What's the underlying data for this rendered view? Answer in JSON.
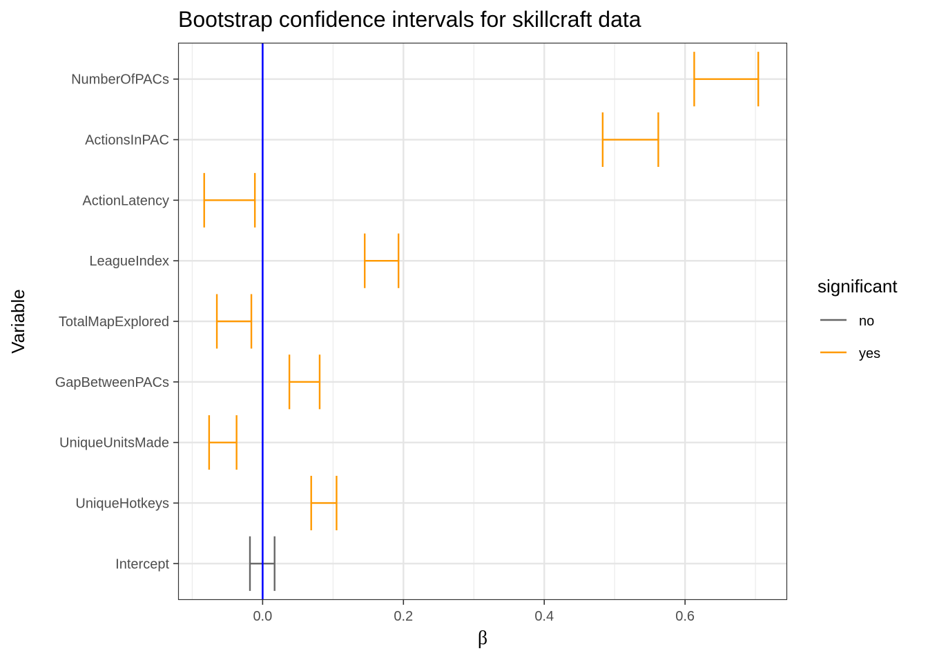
{
  "chart_data": {
    "type": "errorbar",
    "title": "Bootstrap confidence intervals for skillcraft data",
    "xlabel": "β",
    "ylabel": "Variable",
    "xlim": [
      -0.12,
      0.745
    ],
    "x_ticks": [
      "0.0",
      "0.2",
      "0.4",
      "0.6"
    ],
    "x_tick_values": [
      0.0,
      0.2,
      0.4,
      0.6
    ],
    "grid": true,
    "reference_line": {
      "x": 0,
      "color": "#0000ff"
    },
    "legend": {
      "title": "significant",
      "placement": "right",
      "entries": [
        {
          "label": "no",
          "color": "#666666"
        },
        {
          "label": "yes",
          "color": "#ff9900"
        }
      ]
    },
    "categories": [
      "NumberOfPACs",
      "ActionsInPAC",
      "ActionLatency",
      "LeagueIndex",
      "TotalMapExplored",
      "GapBetweenPACs",
      "UniqueUnitsMade",
      "UniqueHotkeys",
      "Intercept"
    ],
    "intervals": [
      {
        "variable": "NumberOfPACs",
        "lower": 0.613,
        "upper": 0.704,
        "significant": "yes"
      },
      {
        "variable": "ActionsInPAC",
        "lower": 0.483,
        "upper": 0.562,
        "significant": "yes"
      },
      {
        "variable": "ActionLatency",
        "lower": -0.083,
        "upper": -0.011,
        "significant": "yes"
      },
      {
        "variable": "LeagueIndex",
        "lower": 0.145,
        "upper": 0.193,
        "significant": "yes"
      },
      {
        "variable": "TotalMapExplored",
        "lower": -0.065,
        "upper": -0.016,
        "significant": "yes"
      },
      {
        "variable": "GapBetweenPACs",
        "lower": 0.038,
        "upper": 0.081,
        "significant": "yes"
      },
      {
        "variable": "UniqueUnitsMade",
        "lower": -0.076,
        "upper": -0.037,
        "significant": "yes"
      },
      {
        "variable": "UniqueHotkeys",
        "lower": 0.069,
        "upper": 0.105,
        "significant": "yes"
      },
      {
        "variable": "Intercept",
        "lower": -0.018,
        "upper": 0.017,
        "significant": "no"
      }
    ]
  }
}
